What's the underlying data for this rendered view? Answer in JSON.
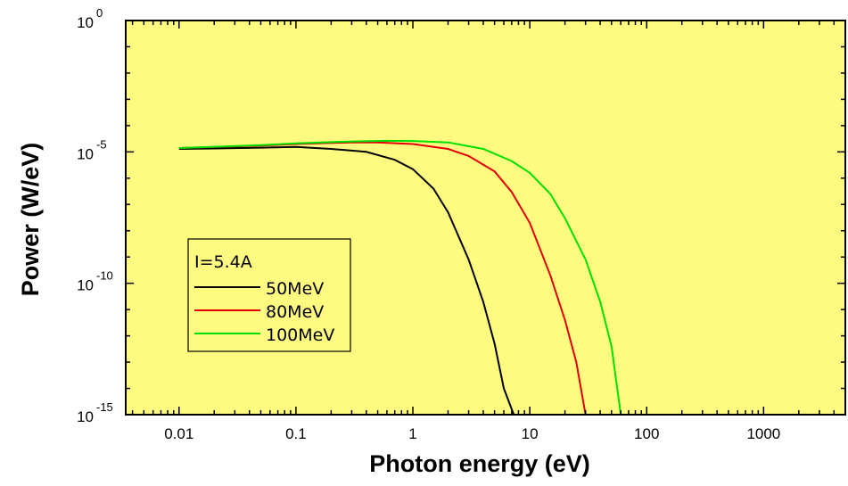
{
  "chart_data": {
    "type": "line",
    "xlabel": "Photon energy (eV)",
    "ylabel": "Power (W/eV)",
    "xscale": "log",
    "yscale": "log",
    "xlim": [
      0.0035,
      5000
    ],
    "ylim": [
      1e-15,
      1
    ],
    "grid": false,
    "background": "#fffb80",
    "x_ticks": [
      {
        "value": 0.01,
        "label": "0.01"
      },
      {
        "value": 0.1,
        "label": "0.1"
      },
      {
        "value": 1,
        "label": "1"
      },
      {
        "value": 10,
        "label": "10"
      },
      {
        "value": 100,
        "label": "100"
      },
      {
        "value": 1000,
        "label": "1000"
      }
    ],
    "y_ticks": [
      {
        "value": 1,
        "base": "10",
        "exponent": "0"
      },
      {
        "value": 1e-05,
        "base": "10",
        "exponent": "-5"
      },
      {
        "value": 1e-10,
        "base": "10",
        "exponent": "-10"
      },
      {
        "value": 1e-15,
        "base": "10",
        "exponent": "-15"
      }
    ],
    "legend": {
      "title": "I=5.4A",
      "position": "left-middle"
    },
    "series": [
      {
        "name": "50MeV",
        "color": "#000000",
        "x": [
          0.01,
          0.02,
          0.05,
          0.1,
          0.2,
          0.4,
          0.7,
          1,
          1.5,
          2,
          3,
          4,
          5,
          6,
          7.3
        ],
        "y": [
          1.3e-05,
          1.35e-05,
          1.45e-05,
          1.55e-05,
          1.3e-05,
          1e-05,
          5e-06,
          2.2e-06,
          4e-07,
          5e-08,
          8e-10,
          2e-11,
          5e-13,
          1e-14,
          1e-15
        ]
      },
      {
        "name": "80MeV",
        "color": "#e00000",
        "x": [
          0.01,
          0.05,
          0.1,
          0.3,
          0.5,
          1,
          2,
          3,
          5,
          7,
          10,
          15,
          20,
          25,
          30
        ],
        "y": [
          1.4e-05,
          1.75e-05,
          2e-05,
          2.3e-05,
          2.3e-05,
          2e-05,
          1.3e-05,
          7e-06,
          1.8e-06,
          3e-07,
          2e-08,
          2e-10,
          4e-12,
          1e-13,
          1e-15
        ]
      },
      {
        "name": "100MeV",
        "color": "#00e000",
        "x": [
          0.01,
          0.05,
          0.1,
          0.3,
          0.6,
          1,
          2,
          4,
          7,
          10,
          15,
          20,
          30,
          40,
          50,
          60
        ],
        "y": [
          1.4e-05,
          1.8e-05,
          2.1e-05,
          2.5e-05,
          2.65e-05,
          2.6e-05,
          2.3e-05,
          1.3e-05,
          4.5e-06,
          1.6e-06,
          2.5e-07,
          3e-08,
          8e-10,
          2e-11,
          4e-13,
          1e-15
        ]
      }
    ]
  }
}
